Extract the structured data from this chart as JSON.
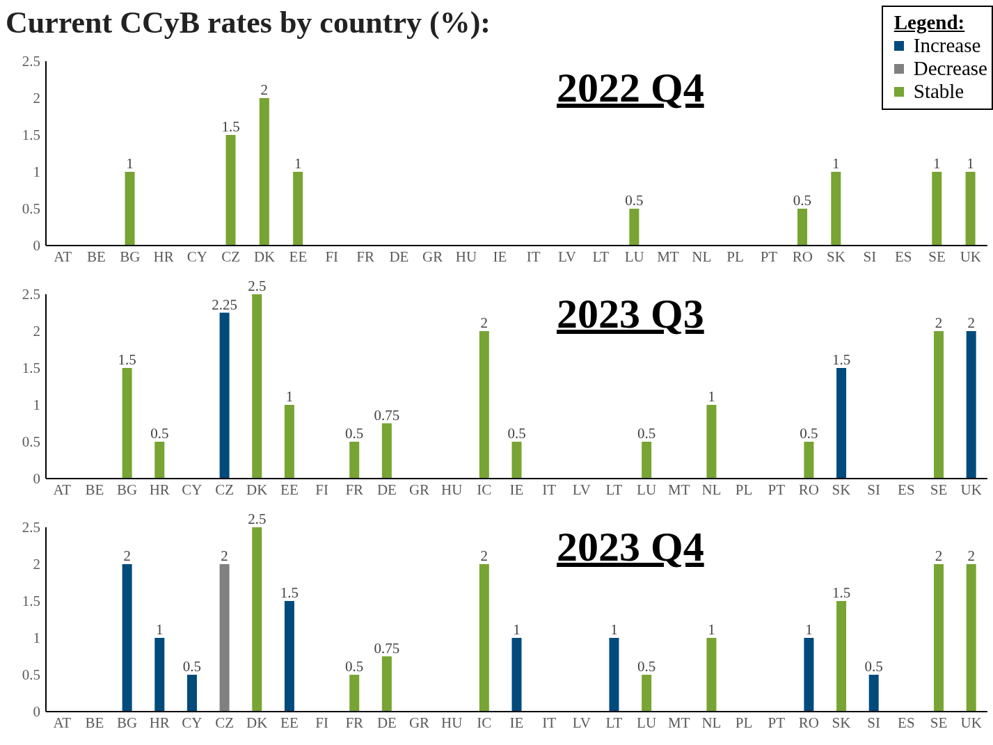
{
  "chart_data": [
    {
      "type": "bar",
      "title": "Current CCyB rates by country (%):",
      "subtitle": "2022 Q4",
      "legend_title": "Legend:",
      "legend": "top right",
      "stacked": true,
      "data_labels": true,
      "grid": false,
      "categories": [
        "AT",
        "BE",
        "BG",
        "HR",
        "CY",
        "CZ",
        "DK",
        "EE",
        "FI",
        "FR",
        "DE",
        "GR",
        "HU",
        "IE",
        "IT",
        "LV",
        "LT",
        "LU",
        "MT",
        "NL",
        "PL",
        "PT",
        "RO",
        "SK",
        "SI",
        "ES",
        "SE",
        "UK"
      ],
      "ylim": [
        0,
        2.5
      ],
      "yticks": [
        0,
        0.5,
        1,
        1.5,
        2,
        2.5
      ],
      "series": [
        {
          "name": "Increase",
          "color": "#004a7c",
          "values": [
            null,
            null,
            null,
            null,
            null,
            null,
            null,
            null,
            null,
            null,
            null,
            null,
            null,
            null,
            null,
            null,
            null,
            null,
            null,
            null,
            null,
            null,
            null,
            null,
            null,
            null,
            null,
            null
          ]
        },
        {
          "name": "Decrease",
          "color": "#808080",
          "values": [
            null,
            null,
            null,
            null,
            null,
            null,
            null,
            null,
            null,
            null,
            null,
            null,
            null,
            null,
            null,
            null,
            null,
            null,
            null,
            null,
            null,
            null,
            null,
            null,
            null,
            null,
            null,
            null
          ]
        },
        {
          "name": "Stable",
          "color": "#77a433",
          "values": [
            null,
            null,
            1,
            null,
            null,
            1.5,
            2,
            1,
            null,
            null,
            null,
            null,
            null,
            null,
            null,
            null,
            null,
            0.5,
            null,
            null,
            null,
            null,
            0.5,
            1,
            null,
            null,
            1,
            1
          ]
        }
      ]
    },
    {
      "type": "bar",
      "subtitle": "2023 Q3",
      "stacked": true,
      "data_labels": true,
      "grid": false,
      "categories": [
        "AT",
        "BE",
        "BG",
        "HR",
        "CY",
        "CZ",
        "DK",
        "EE",
        "FI",
        "FR",
        "DE",
        "GR",
        "HU",
        "IC",
        "IE",
        "IT",
        "LV",
        "LT",
        "LU",
        "MT",
        "NL",
        "PL",
        "PT",
        "RO",
        "SK",
        "SI",
        "ES",
        "SE",
        "UK"
      ],
      "ylim": [
        0,
        2.5
      ],
      "yticks": [
        0,
        0.5,
        1,
        1.5,
        2,
        2.5
      ],
      "series": [
        {
          "color": "#004a7c",
          "values": [
            null,
            null,
            null,
            null,
            null,
            2.25,
            null,
            null,
            null,
            null,
            null,
            null,
            null,
            null,
            null,
            null,
            null,
            null,
            null,
            null,
            null,
            null,
            null,
            null,
            1.5,
            null,
            null,
            null,
            2
          ]
        },
        {
          "color": "#808080",
          "values": [
            null,
            null,
            null,
            null,
            null,
            null,
            null,
            null,
            null,
            null,
            null,
            null,
            null,
            null,
            null,
            null,
            null,
            null,
            null,
            null,
            null,
            null,
            null,
            null,
            null,
            null,
            null,
            null,
            null
          ]
        },
        {
          "color": "#77a433",
          "values": [
            null,
            null,
            1.5,
            0.5,
            null,
            null,
            2.5,
            1,
            null,
            0.5,
            0.75,
            null,
            null,
            2,
            0.5,
            null,
            null,
            null,
            0.5,
            null,
            1,
            null,
            null,
            0.5,
            null,
            null,
            null,
            2,
            null
          ]
        }
      ]
    },
    {
      "type": "bar",
      "subtitle": "2023 Q4",
      "stacked": true,
      "data_labels": true,
      "grid": false,
      "categories": [
        "AT",
        "BE",
        "BG",
        "HR",
        "CY",
        "CZ",
        "DK",
        "EE",
        "FI",
        "FR",
        "DE",
        "GR",
        "HU",
        "IC",
        "IE",
        "IT",
        "LV",
        "LT",
        "LU",
        "MT",
        "NL",
        "PL",
        "PT",
        "RO",
        "SK",
        "SI",
        "ES",
        "SE",
        "UK"
      ],
      "ylim": [
        0,
        2.5
      ],
      "yticks": [
        0,
        0.5,
        1,
        1.5,
        2,
        2.5
      ],
      "series": [
        {
          "color": "#004a7c",
          "values": [
            null,
            null,
            2,
            1,
            0.5,
            null,
            null,
            1.5,
            null,
            null,
            null,
            null,
            null,
            null,
            1,
            null,
            null,
            1,
            null,
            null,
            null,
            null,
            null,
            1,
            null,
            0.5,
            null,
            null,
            null
          ]
        },
        {
          "color": "#808080",
          "values": [
            null,
            null,
            null,
            null,
            null,
            2,
            null,
            null,
            null,
            null,
            null,
            null,
            null,
            null,
            null,
            null,
            null,
            null,
            null,
            null,
            null,
            null,
            null,
            null,
            null,
            null,
            null,
            null,
            null
          ]
        },
        {
          "color": "#77a433",
          "values": [
            null,
            null,
            null,
            null,
            null,
            null,
            2.5,
            null,
            null,
            0.5,
            0.75,
            null,
            null,
            2,
            null,
            null,
            null,
            null,
            0.5,
            null,
            1,
            null,
            null,
            null,
            1.5,
            null,
            null,
            2,
            2
          ]
        }
      ]
    }
  ]
}
